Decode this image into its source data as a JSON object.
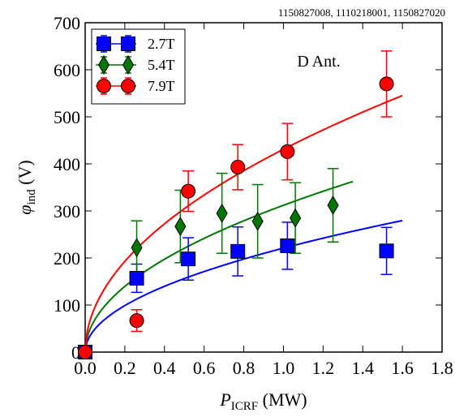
{
  "chart_data": {
    "type": "scatter",
    "shot_numbers": "1150827008, 1110218001, 1150827020",
    "annotation": "D Ant.",
    "xlabel": {
      "main": "P",
      "sub": "ICRF",
      "unit": " (MW)"
    },
    "ylabel": {
      "main": "φ",
      "sub": "ind",
      "unit": " (V)"
    },
    "xlim": [
      0.0,
      1.8
    ],
    "ylim": [
      0,
      700
    ],
    "xticks": [
      0.0,
      0.2,
      0.4,
      0.6,
      0.8,
      1.0,
      1.2,
      1.4,
      1.6,
      1.8
    ],
    "xtick_labels": [
      "0.0",
      "0.2",
      "0.4",
      "0.6",
      "0.8",
      "1.0",
      "1.2",
      "1.4",
      "1.6",
      "1.8"
    ],
    "yticks": [
      0,
      100,
      200,
      300,
      400,
      500,
      600,
      700
    ],
    "ytick_labels": [
      "0",
      "100",
      "200",
      "300",
      "400",
      "500",
      "600",
      "700"
    ],
    "legend_position": "top-left",
    "series": [
      {
        "name": "2.7T",
        "color": "#0000ff",
        "marker": "square",
        "points": [
          {
            "x": 0.0,
            "y": 0,
            "err": 0
          },
          {
            "x": 0.26,
            "y": 157,
            "err": 30
          },
          {
            "x": 0.52,
            "y": 198,
            "err": 45
          },
          {
            "x": 0.77,
            "y": 214,
            "err": 52
          },
          {
            "x": 1.02,
            "y": 226,
            "err": 50
          },
          {
            "x": 1.52,
            "y": 215,
            "err": 50
          }
        ],
        "fit": {
          "a": 221.0,
          "b": 0.5,
          "xmax": 1.6
        }
      },
      {
        "name": "5.4T",
        "color": "#007700",
        "marker": "diamond",
        "points": [
          {
            "x": 0.26,
            "y": 222,
            "err": 57
          },
          {
            "x": 0.48,
            "y": 267,
            "err": 77
          },
          {
            "x": 0.69,
            "y": 295,
            "err": 85
          },
          {
            "x": 0.87,
            "y": 278,
            "err": 78
          },
          {
            "x": 1.06,
            "y": 285,
            "err": 75
          },
          {
            "x": 1.25,
            "y": 312,
            "err": 78
          }
        ],
        "fit": {
          "a": 312.0,
          "b": 0.5,
          "xmax": 1.35
        }
      },
      {
        "name": "7.9T",
        "color": "#ff0000",
        "marker": "circle",
        "points": [
          {
            "x": 0.0,
            "y": 0,
            "err": 0
          },
          {
            "x": 0.26,
            "y": 67,
            "err": 23
          },
          {
            "x": 0.52,
            "y": 342,
            "err": 43
          },
          {
            "x": 0.77,
            "y": 393,
            "err": 48
          },
          {
            "x": 1.02,
            "y": 426,
            "err": 60
          },
          {
            "x": 1.52,
            "y": 570,
            "err": 70
          }
        ],
        "fit": {
          "a": 431.0,
          "b": 0.5,
          "xmax": 1.6
        }
      }
    ]
  }
}
